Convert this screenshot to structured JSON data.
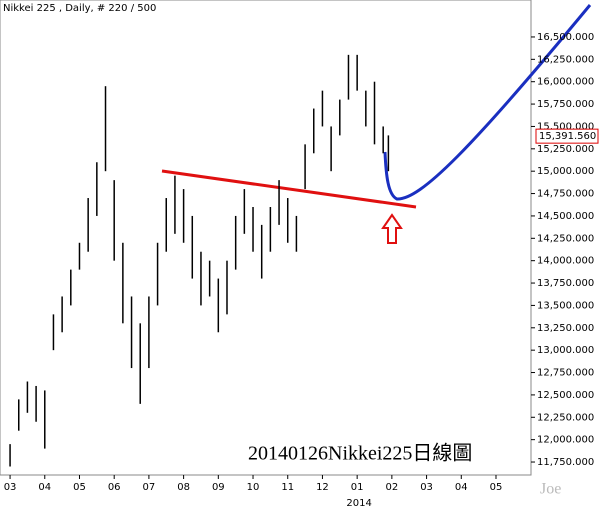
{
  "chart_data": {
    "type": "ohlc",
    "title": "Nikkei 225 , Daily, # 220 / 500",
    "annotation": "20140126Nikkei225日線圖",
    "watermark": "Joe",
    "year_label": "2014",
    "color": "#000000",
    "last": {
      "value": 15391.56,
      "label": "15,391.560"
    },
    "x": [
      0,
      0.25,
      0.5,
      0.75,
      1,
      1.25,
      1.5,
      1.75,
      2,
      2.25,
      2.5,
      2.75,
      3,
      3.25,
      3.5,
      3.75,
      4,
      4.25,
      4.5,
      4.75,
      5,
      5.25,
      5.5,
      5.75,
      6,
      6.25,
      6.5,
      6.75,
      7,
      7.25,
      7.5,
      7.75,
      8,
      8.25,
      8.5,
      8.75,
      9,
      9.25,
      9.5,
      9.75,
      10,
      10.25,
      10.5,
      10.75,
      10.9
    ],
    "high": [
      11950,
      12450,
      12650,
      12600,
      12550,
      13400,
      13600,
      13900,
      14200,
      14700,
      15100,
      15950,
      14900,
      14200,
      13600,
      13300,
      13600,
      14200,
      14700,
      14950,
      14800,
      14500,
      14100,
      14000,
      13800,
      14000,
      14500,
      14800,
      14600,
      14400,
      14600,
      14900,
      14700,
      14500,
      15300,
      15700,
      15900,
      15500,
      15800,
      16300,
      16300,
      15900,
      16000,
      15500,
      15400
    ],
    "low": [
      11700,
      12100,
      12300,
      12200,
      11900,
      13000,
      13200,
      13500,
      13900,
      14100,
      14500,
      15000,
      14000,
      13300,
      12800,
      12400,
      12800,
      13500,
      14100,
      14300,
      14200,
      13800,
      13500,
      13600,
      13200,
      13400,
      13900,
      14300,
      14100,
      13800,
      14100,
      14400,
      14200,
      14100,
      14800,
      15200,
      15500,
      15000,
      15400,
      15800,
      15900,
      15500,
      15300,
      15200,
      15000
    ],
    "xlim": [
      -0.29,
      14.98
    ],
    "xticks": [
      {
        "value": 0,
        "label": "03"
      },
      {
        "value": 1,
        "label": "04"
      },
      {
        "value": 2,
        "label": "05"
      },
      {
        "value": 3,
        "label": "06"
      },
      {
        "value": 4,
        "label": "07"
      },
      {
        "value": 5,
        "label": "08"
      },
      {
        "value": 6,
        "label": "09"
      },
      {
        "value": 7,
        "label": "10"
      },
      {
        "value": 8,
        "label": "11"
      },
      {
        "value": 9,
        "label": "12"
      },
      {
        "value": 10,
        "label": "01"
      },
      {
        "value": 11,
        "label": "02"
      },
      {
        "value": 12,
        "label": "03"
      },
      {
        "value": 13,
        "label": "04"
      },
      {
        "value": 14,
        "label": "05"
      }
    ],
    "year_x": 10,
    "ylim": [
      11605,
      16913
    ],
    "yticks": [
      {
        "value": 11750,
        "label": "11,750.000"
      },
      {
        "value": 12000,
        "label": "12,000.000"
      },
      {
        "value": 12250,
        "label": "12,250.000"
      },
      {
        "value": 12500,
        "label": "12,500.000"
      },
      {
        "value": 12750,
        "label": "12,750.000"
      },
      {
        "value": 13000,
        "label": "13,000.000"
      },
      {
        "value": 13250,
        "label": "13,250.000"
      },
      {
        "value": 13500,
        "label": "13,500.000"
      },
      {
        "value": 13750,
        "label": "13,750.000"
      },
      {
        "value": 14000,
        "label": "14,000.000"
      },
      {
        "value": 14250,
        "label": "14,250.000"
      },
      {
        "value": 14500,
        "label": "14,500.000"
      },
      {
        "value": 14750,
        "label": "14,750.000"
      },
      {
        "value": 15000,
        "label": "15,000.000"
      },
      {
        "value": 15250,
        "label": "15,250.000"
      },
      {
        "value": 15500,
        "label": "15,500.000"
      },
      {
        "value": 15750,
        "label": "15,750.000"
      },
      {
        "value": 16000,
        "label": "16,000.000"
      },
      {
        "value": 16250,
        "label": "16,250.000"
      },
      {
        "value": 16500,
        "label": "16,500.000"
      }
    ]
  }
}
